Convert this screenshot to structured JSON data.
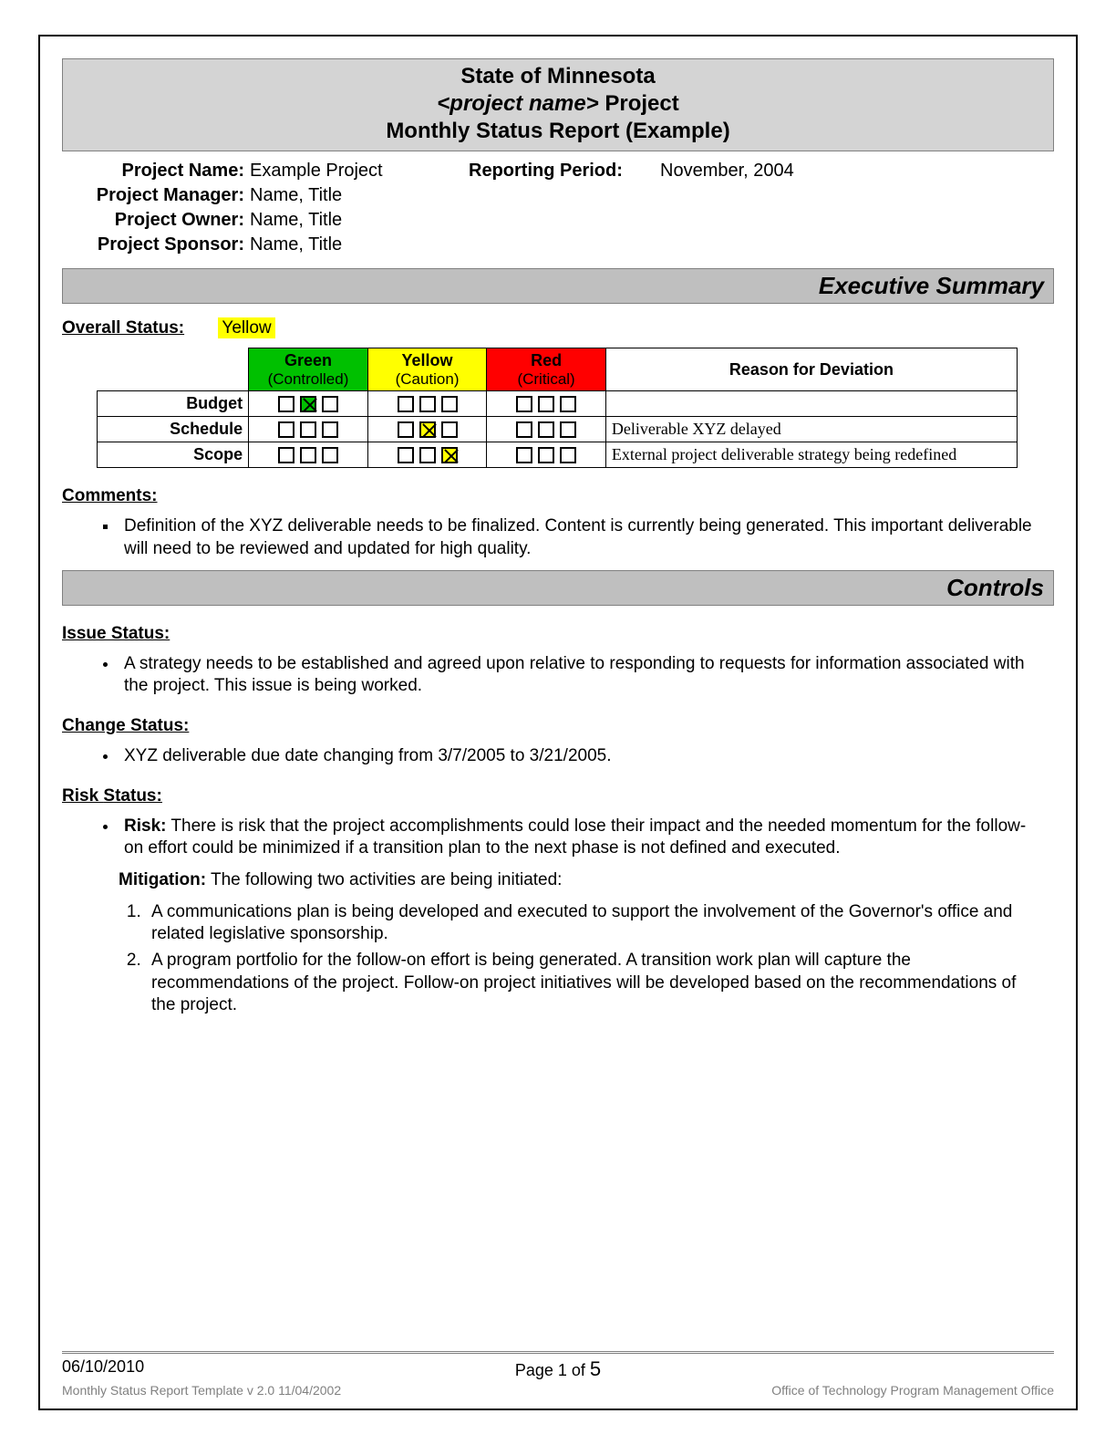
{
  "colors": {
    "header_bg": "#d4d4d4",
    "banner_bg": "#bfbfbf",
    "green": "#00c000",
    "yellow": "#ffff00",
    "red": "#ff0000",
    "footer_gray": "#808080"
  },
  "header": {
    "line1": "State of Minnesota",
    "line2_italic": "<project name>",
    "line2_rest": " Project",
    "line3": "Monthly Status Report (Example)"
  },
  "info": {
    "rows": [
      {
        "label": "Project Name:",
        "value": "Example Project",
        "label2": "Reporting Period:",
        "value2": "November, 2004"
      },
      {
        "label": "Project Manager:",
        "value": "Name, Title",
        "label2": "",
        "value2": ""
      },
      {
        "label": "Project Owner:",
        "value": "Name, Title",
        "label2": "",
        "value2": ""
      },
      {
        "label": "Project Sponsor:",
        "value": "Name, Title",
        "label2": "",
        "value2": ""
      }
    ]
  },
  "exec_summary": {
    "banner": "Executive Summary",
    "overall_label": "Overall Status:",
    "overall_value": "Yellow",
    "overall_value_bg": "#ffff00",
    "table": {
      "columns": [
        {
          "title": "Green",
          "sub": "(Controlled)",
          "bg": "#00c000"
        },
        {
          "title": "Yellow",
          "sub": "(Caution)",
          "bg": "#ffff00"
        },
        {
          "title": "Red",
          "sub": "(Critical)",
          "bg": "#ff0000"
        },
        {
          "title": "Reason for Deviation",
          "sub": "",
          "bg": "#ffffff"
        }
      ],
      "rows": [
        {
          "name": "Budget",
          "green": [
            0,
            1,
            0
          ],
          "yellow": [
            0,
            0,
            0
          ],
          "red": [
            0,
            0,
            0
          ],
          "checked_color": "green",
          "reason": ""
        },
        {
          "name": "Schedule",
          "green": [
            0,
            0,
            0
          ],
          "yellow": [
            0,
            1,
            0
          ],
          "red": [
            0,
            0,
            0
          ],
          "checked_color": "yellow",
          "reason": "Deliverable XYZ delayed"
        },
        {
          "name": "Scope",
          "green": [
            0,
            0,
            0
          ],
          "yellow": [
            0,
            0,
            1
          ],
          "red": [
            0,
            0,
            0
          ],
          "checked_color": "yellow",
          "reason": "External project deliverable strategy being redefined"
        }
      ]
    },
    "comments_label": "Comments:",
    "comments": [
      "Definition of the XYZ deliverable needs to be finalized.  Content is currently being generated.  This important deliverable will need to be reviewed and updated for high quality."
    ]
  },
  "controls": {
    "banner": "Controls",
    "issue_label": "Issue Status:",
    "issues": [
      "A strategy needs to be established and agreed upon relative to responding to requests for information associated with the project.  This issue is being worked."
    ],
    "change_label": "Change Status:",
    "changes": [
      "XYZ deliverable due date changing from 3/7/2005 to 3/21/2005."
    ],
    "risk_label_prefix": "Risk ",
    "risk_label_rest": "Status:",
    "risk_heading": "Risk:",
    "risk_text": " There is risk that the project accomplishments could lose their impact and the needed momentum for the follow-on effort could be minimized if a transition plan to the next phase is not defined and executed.",
    "mitigation_heading": "Mitigation:",
    "mitigation_intro": "  The following two activities are being initiated:",
    "mitigations": [
      "A communications plan is being developed and executed to support the involvement of the Governor's office and related legislative sponsorship.",
      "A program portfolio for the follow-on effort is being generated. A transition work plan will capture the recommendations of the project. Follow-on project initiatives will be developed based on the recommendations of the project."
    ]
  },
  "footer": {
    "date": "06/10/2010",
    "page_prefix": "Page 1 of ",
    "page_total": "5",
    "template": "Monthly Status Report Template  v 2.0  11/04/2002",
    "office": "Office of Technology Program Management Office"
  }
}
